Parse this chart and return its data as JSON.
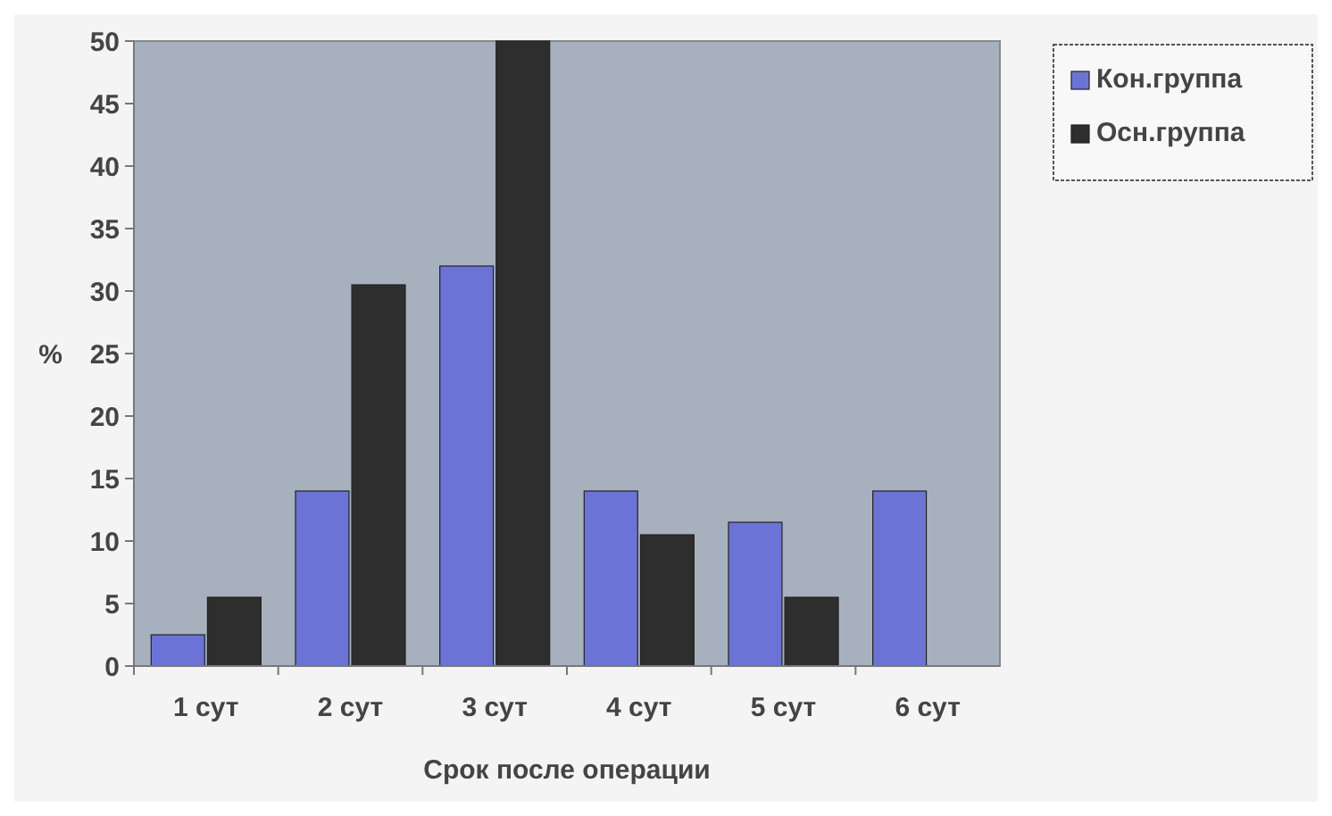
{
  "chart_data": {
    "type": "bar",
    "xlabel": "Срок после операции",
    "ylabel": "%",
    "categories": [
      "1 сут",
      "2 сут",
      "3 сут",
      "4 сут",
      "5 сут",
      "6 сут"
    ],
    "series": [
      {
        "name": "Кон.группа",
        "color": "#6b74d6",
        "values": [
          2.5,
          14,
          32,
          14,
          11.5,
          14
        ]
      },
      {
        "name": "Осн.группа",
        "color": "#2e2e2e",
        "values": [
          5.5,
          30.5,
          50,
          10.5,
          5.5,
          null
        ]
      }
    ],
    "ylim": [
      0,
      50
    ],
    "yticks": [
      0,
      5,
      10,
      15,
      20,
      25,
      30,
      35,
      40,
      45,
      50
    ],
    "grid": false,
    "legend": "top right"
  }
}
